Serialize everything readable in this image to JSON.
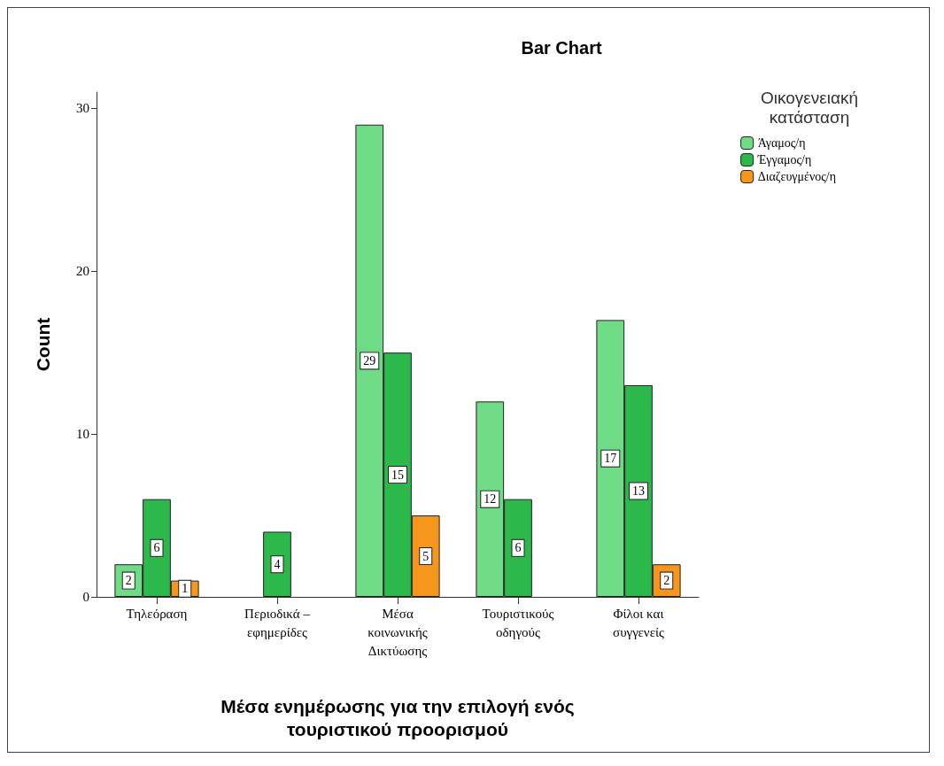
{
  "chart_data": {
    "type": "bar",
    "title": "Bar Chart",
    "categories": [
      "Τηλεόραση",
      "Περιοδικά – εφημερίδες",
      "Μέσα κοινωνικής Δικτύωσης",
      "Τουριστικούς οδηγούς",
      "Φίλοι και συγγενείς"
    ],
    "series": [
      {
        "name": "Άγαμος/η",
        "color": "#70db86",
        "values": [
          2,
          null,
          29,
          12,
          17
        ]
      },
      {
        "name": "Έγγαμος/η",
        "color": "#2db84b",
        "values": [
          6,
          4,
          15,
          6,
          13
        ]
      },
      {
        "name": "Διαζευγμένος/η",
        "color": "#f7961d",
        "values": [
          1,
          null,
          5,
          null,
          2
        ]
      }
    ],
    "xlabel": "Μέσα ενημέρωσης για την επιλογή ενός τουριστικού προορισμού",
    "ylabel": "Count",
    "legend_title": "Οικογενειακή κατάσταση",
    "legend": "top right",
    "ylim": [
      0,
      31
    ],
    "yticks": [
      0,
      10,
      20,
      30
    ],
    "grid": false,
    "data_labels": true
  }
}
